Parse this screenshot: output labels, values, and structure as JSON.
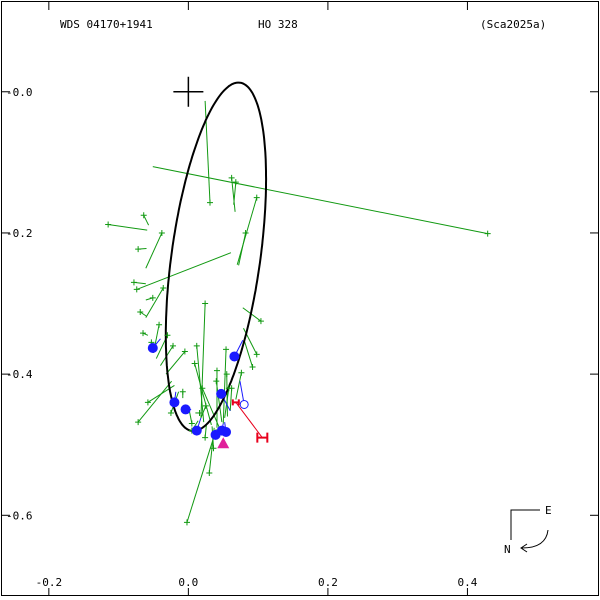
{
  "header": {
    "left": "WDS 04170+1941",
    "center": "HO  328",
    "right": "(Sca2025a)"
  },
  "compass": {
    "east": "E",
    "north": "N"
  },
  "colors": {
    "frame": "#000000",
    "orbit": "#000000",
    "obs": "#119911",
    "speckle": "#1a1aff",
    "hipparcos": "#e8001c",
    "prediction": "#e0209a"
  },
  "chart_data": {
    "type": "scatter",
    "title": "",
    "xlabel": "",
    "ylabel": "",
    "xlim": [
      -0.27,
      0.59
    ],
    "ylim": [
      -0.72,
      0.13
    ],
    "xticks": [
      {
        "v": -0.2,
        "label": "-0.2"
      },
      {
        "v": 0.0,
        "label": "0.0"
      },
      {
        "v": 0.2,
        "label": "0.2"
      },
      {
        "v": 0.4,
        "label": "0.4"
      }
    ],
    "yticks": [
      {
        "v": 0.0,
        "label": "-0.0"
      },
      {
        "v": -0.2,
        "label": "-0.2"
      },
      {
        "v": -0.4,
        "label": "-0.4"
      },
      {
        "v": -0.6,
        "label": "-0.6"
      }
    ],
    "primary": [
      0.0,
      0.0
    ],
    "orbit": {
      "cx": 0.0395,
      "cy": -0.2338,
      "a": 0.2491,
      "b": 0.0636,
      "theta_deg": 82.02
    },
    "visual_obs": [
      {
        "o": [
          0.429,
          -0.201
        ],
        "c": [
          -0.051,
          -0.106
        ]
      },
      {
        "o": [
          0.031,
          -0.157
        ],
        "c": [
          0.024,
          -0.013
        ]
      },
      {
        "o": [
          -0.115,
          -0.188
        ],
        "c": [
          -0.059,
          -0.196
        ]
      },
      {
        "o": [
          -0.064,
          -0.175
        ],
        "c": [
          -0.057,
          -0.189
        ]
      },
      {
        "o": [
          -0.072,
          -0.223
        ],
        "c": [
          -0.06,
          -0.222
        ]
      },
      {
        "o": [
          -0.038,
          -0.2
        ],
        "c": [
          -0.061,
          -0.25
        ]
      },
      {
        "o": [
          -0.078,
          -0.27
        ],
        "c": [
          -0.061,
          -0.272
        ]
      },
      {
        "o": [
          -0.051,
          -0.292
        ],
        "c": [
          -0.061,
          -0.295
        ]
      },
      {
        "o": [
          -0.069,
          -0.312
        ],
        "c": [
          -0.06,
          -0.318
        ]
      },
      {
        "o": [
          -0.036,
          -0.278
        ],
        "c": [
          -0.061,
          -0.32
        ]
      },
      {
        "o": [
          -0.065,
          -0.342
        ],
        "c": [
          -0.058,
          -0.345
        ]
      },
      {
        "o": [
          -0.053,
          -0.355
        ],
        "c": [
          -0.054,
          -0.36
        ]
      },
      {
        "o": [
          -0.042,
          -0.33
        ],
        "c": [
          -0.05,
          -0.37
        ]
      },
      {
        "o": [
          -0.03,
          -0.345
        ],
        "c": [
          -0.046,
          -0.378
        ]
      },
      {
        "o": [
          -0.022,
          -0.36
        ],
        "c": [
          -0.04,
          -0.388
        ]
      },
      {
        "o": [
          -0.005,
          -0.368
        ],
        "c": [
          -0.032,
          -0.4
        ]
      },
      {
        "o": [
          -0.072,
          -0.468
        ],
        "c": [
          -0.024,
          -0.41
        ]
      },
      {
        "o": [
          -0.058,
          -0.44
        ],
        "c": [
          -0.02,
          -0.416
        ]
      },
      {
        "o": [
          -0.025,
          -0.455
        ],
        "c": [
          -0.014,
          -0.425
        ]
      },
      {
        "o": [
          -0.008,
          -0.425
        ],
        "c": [
          -0.008,
          -0.434
        ]
      },
      {
        "o": [
          0.005,
          -0.47
        ],
        "c": [
          0.0,
          -0.445
        ]
      },
      {
        "o": [
          0.016,
          -0.455
        ],
        "c": [
          0.01,
          -0.455
        ]
      },
      {
        "o": [
          0.025,
          -0.445
        ],
        "c": [
          0.018,
          -0.462
        ]
      },
      {
        "o": [
          0.024,
          -0.49
        ],
        "c": [
          0.026,
          -0.47
        ]
      },
      {
        "o": [
          0.036,
          -0.505
        ],
        "c": [
          0.034,
          -0.474
        ]
      },
      {
        "o": [
          0.03,
          -0.54
        ],
        "c": [
          0.037,
          -0.476
        ]
      },
      {
        "o": [
          -0.002,
          -0.61
        ],
        "c": [
          0.04,
          -0.478
        ]
      },
      {
        "o": [
          0.02,
          -0.42
        ],
        "c": [
          0.044,
          -0.475
        ]
      },
      {
        "o": [
          0.04,
          -0.41
        ],
        "c": [
          0.048,
          -0.468
        ]
      },
      {
        "o": [
          0.055,
          -0.4
        ],
        "c": [
          0.056,
          -0.46
        ]
      },
      {
        "o": [
          0.009,
          -0.385
        ],
        "c": [
          0.033,
          -0.472
        ]
      },
      {
        "o": [
          0.012,
          -0.36
        ],
        "c": [
          0.022,
          -0.468
        ]
      },
      {
        "o": [
          0.024,
          -0.3
        ],
        "c": [
          0.018,
          -0.462
        ]
      },
      {
        "o": [
          0.041,
          -0.395
        ],
        "c": [
          0.041,
          -0.476
        ]
      },
      {
        "o": [
          0.054,
          -0.365
        ],
        "c": [
          0.05,
          -0.47
        ]
      },
      {
        "o": [
          0.062,
          -0.42
        ],
        "c": [
          0.06,
          -0.452
        ]
      },
      {
        "o": [
          0.076,
          -0.398
        ],
        "c": [
          0.068,
          -0.436
        ]
      },
      {
        "o": [
          0.104,
          -0.325
        ],
        "c": [
          0.078,
          -0.306
        ]
      },
      {
        "o": [
          0.098,
          -0.372
        ],
        "c": [
          0.079,
          -0.335
        ]
      },
      {
        "o": [
          0.092,
          -0.39
        ],
        "c": [
          0.08,
          -0.352
        ]
      },
      {
        "o": [
          0.082,
          -0.2
        ],
        "c": [
          0.072,
          -0.246
        ]
      },
      {
        "o": [
          0.098,
          -0.15
        ],
        "c": [
          0.07,
          -0.245
        ]
      },
      {
        "o": [
          0.062,
          -0.122
        ],
        "c": [
          0.067,
          -0.17
        ]
      },
      {
        "o": [
          0.068,
          -0.128
        ],
        "c": [
          0.065,
          -0.16
        ]
      },
      {
        "o": [
          -0.074,
          -0.28
        ],
        "c": [
          0.061,
          -0.228
        ]
      },
      {
        "o": [
          0.005,
          -0.48
        ],
        "c": [
          0.014,
          -0.466
        ]
      },
      {
        "o": [
          0.058,
          -0.42
        ],
        "c": [
          0.052,
          -0.462
        ]
      }
    ],
    "speckle_obs": [
      {
        "o": [
          -0.051,
          -0.363
        ],
        "c": [
          -0.04,
          -0.35
        ]
      },
      {
        "o": [
          -0.02,
          -0.44
        ],
        "c": [
          -0.018,
          -0.425
        ]
      },
      {
        "o": [
          -0.004,
          -0.45
        ],
        "c": [
          0.004,
          -0.45
        ]
      },
      {
        "o": [
          0.012,
          -0.48
        ],
        "c": [
          0.018,
          -0.462
        ]
      },
      {
        "o": [
          0.039,
          -0.486
        ],
        "c": [
          0.044,
          -0.475
        ]
      },
      {
        "o": [
          0.048,
          -0.48
        ],
        "c": [
          0.05,
          -0.47
        ]
      },
      {
        "o": [
          0.054,
          -0.482
        ],
        "c": [
          0.052,
          -0.468
        ]
      },
      {
        "o": [
          0.047,
          -0.428
        ],
        "c": [
          0.06,
          -0.452
        ]
      },
      {
        "o": [
          0.066,
          -0.375
        ],
        "c": [
          0.078,
          -0.352
        ]
      }
    ],
    "open_circle": {
      "o": [
        0.08,
        -0.443
      ],
      "c": [
        0.074,
        -0.41
      ]
    },
    "hipparcos": {
      "o": [
        0.106,
        -0.49
      ],
      "c": [
        0.068,
        -0.44
      ]
    },
    "prediction": [
      0.05,
      -0.498
    ]
  }
}
